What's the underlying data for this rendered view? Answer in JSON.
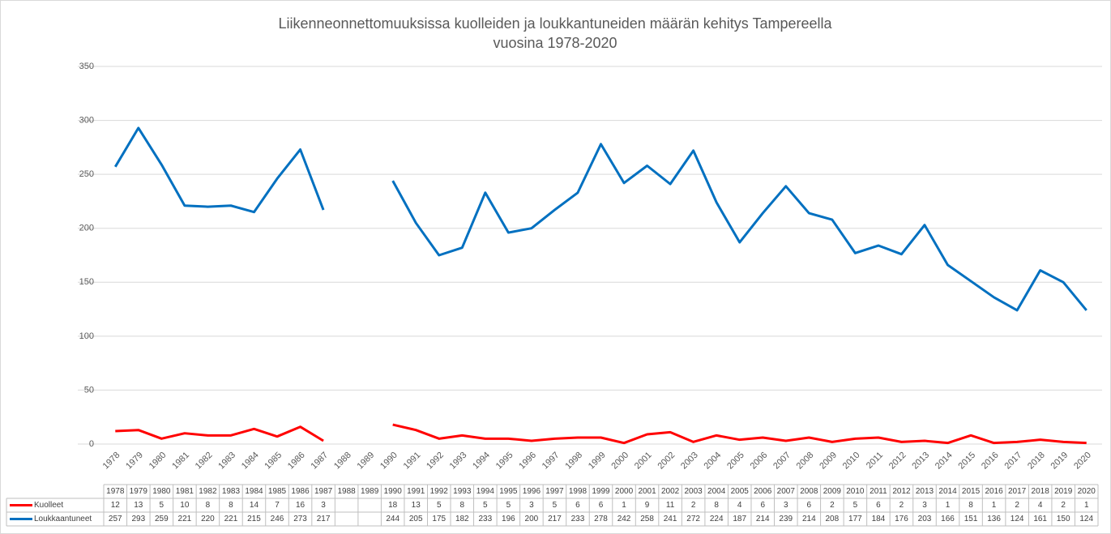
{
  "chart_data": {
    "type": "line",
    "title": [
      "Liikenneonnettomuuksissa kuolleiden ja loukkantuneiden määrän kehitys Tampereella",
      "vuosina 1978-2020"
    ],
    "categories": [
      "1978",
      "1979",
      "1980",
      "1981",
      "1982",
      "1983",
      "1984",
      "1985",
      "1986",
      "1987",
      "1988",
      "1989",
      "1990",
      "1991",
      "1992",
      "1993",
      "1994",
      "1995",
      "1996",
      "1997",
      "1998",
      "1999",
      "2000",
      "2001",
      "2002",
      "2003",
      "2004",
      "2005",
      "2006",
      "2007",
      "2008",
      "2009",
      "2010",
      "2011",
      "2012",
      "2013",
      "2014",
      "2015",
      "2016",
      "2017",
      "2018",
      "2019",
      "2020"
    ],
    "series": [
      {
        "name": "Kuolleet",
        "color": "#ff0000",
        "values": [
          12,
          13,
          5,
          10,
          8,
          8,
          14,
          7,
          16,
          3,
          null,
          null,
          18,
          13,
          5,
          8,
          5,
          5,
          3,
          5,
          6,
          6,
          1,
          9,
          11,
          2,
          8,
          4,
          6,
          3,
          6,
          2,
          5,
          6,
          2,
          3,
          1,
          8,
          1,
          2,
          4,
          2,
          1
        ]
      },
      {
        "name": "Loukkaantuneet",
        "color": "#0070c0",
        "values": [
          257,
          293,
          259,
          221,
          220,
          221,
          215,
          246,
          273,
          217,
          null,
          null,
          244,
          205,
          175,
          182,
          233,
          196,
          200,
          217,
          233,
          278,
          242,
          258,
          241,
          272,
          224,
          187,
          214,
          239,
          214,
          208,
          177,
          184,
          176,
          203,
          166,
          151,
          136,
          124,
          161,
          150,
          124
        ]
      }
    ],
    "ylim": [
      0,
      350
    ],
    "yticks": [
      0,
      50,
      100,
      150,
      200,
      250,
      300,
      350
    ],
    "grid": true
  }
}
